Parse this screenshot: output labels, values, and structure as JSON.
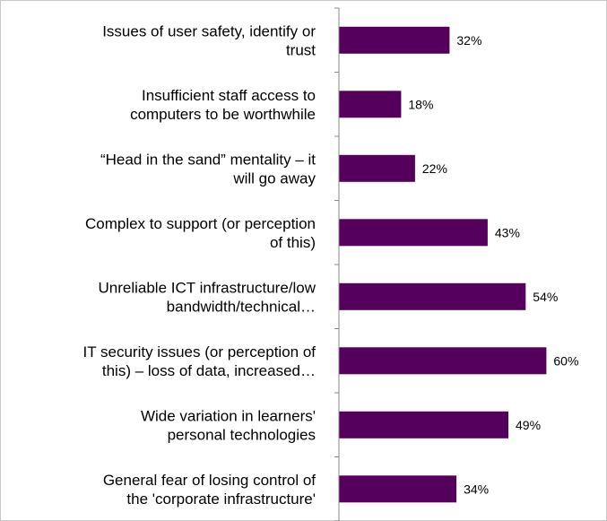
{
  "chart_data": {
    "type": "bar",
    "orientation": "horizontal",
    "categories": [
      [
        "Issues of user safety, identify or",
        "trust"
      ],
      [
        "Insufficient staff access to",
        "computers to be worthwhile"
      ],
      [
        "“Head in the sand” mentality – it",
        "will go away"
      ],
      [
        "Complex to support (or perception",
        "of this)"
      ],
      [
        "Unreliable ICT infrastructure/low",
        "bandwidth/technical…"
      ],
      [
        "IT security issues (or perception of",
        "this) – loss of data, increased…"
      ],
      [
        "Wide variation in learners'",
        "personal technologies"
      ],
      [
        "General fear of losing control of",
        "the 'corporate infrastructure'"
      ]
    ],
    "values": [
      32,
      18,
      22,
      43,
      54,
      60,
      49,
      34
    ],
    "value_labels": [
      "32%",
      "18%",
      "22%",
      "43%",
      "54%",
      "60%",
      "49%",
      "34%"
    ],
    "xlim": [
      0,
      70
    ],
    "bar_color": "#54005c",
    "grid": false,
    "legend": "none"
  }
}
